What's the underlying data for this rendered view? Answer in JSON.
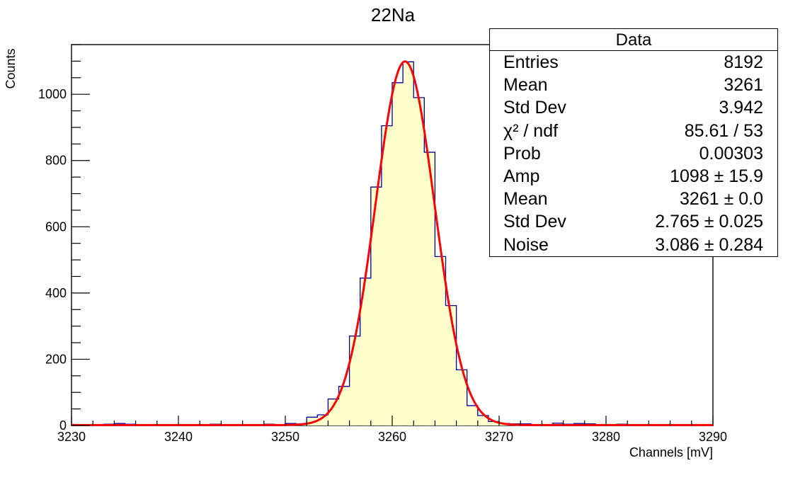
{
  "chart_data": {
    "type": "bar",
    "title": "22Na",
    "xlabel": "Channels [mV]",
    "ylabel": "Counts",
    "xlim": [
      3230,
      3290
    ],
    "ylim": [
      0,
      1150
    ],
    "x_ticks": [
      3230,
      3240,
      3250,
      3260,
      3270,
      3280,
      3290
    ],
    "y_ticks": [
      0,
      200,
      400,
      600,
      800,
      1000
    ],
    "grid": false,
    "fill_color": "#ffffcc",
    "line_color": "#000099",
    "fit_color": "#ff0000",
    "histogram": {
      "bin_width": 1,
      "bin_starts": [
        3230,
        3231,
        3232,
        3233,
        3234,
        3235,
        3236,
        3237,
        3238,
        3239,
        3240,
        3241,
        3242,
        3243,
        3244,
        3245,
        3246,
        3247,
        3248,
        3249,
        3250,
        3251,
        3252,
        3253,
        3254,
        3255,
        3256,
        3257,
        3258,
        3259,
        3260,
        3261,
        3262,
        3263,
        3264,
        3265,
        3266,
        3267,
        3268,
        3269,
        3270,
        3271,
        3272,
        3273,
        3274,
        3275,
        3276,
        3277,
        3278,
        3279,
        3280,
        3281,
        3282,
        3283,
        3284,
        3285,
        3286,
        3287,
        3288,
        3289
      ],
      "counts": [
        3,
        3,
        2,
        4,
        6,
        4,
        2,
        3,
        2,
        3,
        3,
        2,
        3,
        4,
        2,
        3,
        2,
        3,
        4,
        3,
        6,
        5,
        25,
        32,
        80,
        118,
        270,
        445,
        720,
        905,
        1035,
        1098,
        990,
        825,
        510,
        362,
        168,
        60,
        30,
        12,
        6,
        5,
        5,
        3,
        3,
        7,
        4,
        6,
        5,
        3,
        3,
        4,
        3,
        3,
        2,
        3,
        2,
        3,
        3,
        2
      ]
    },
    "fit": {
      "function": "gaussian + constant",
      "amp": 1098,
      "mean": 3261.2,
      "sigma": 2.765,
      "noise": 3.086
    }
  },
  "stats_box": {
    "title": "Data",
    "rows": [
      {
        "key": "Entries",
        "value": "8192"
      },
      {
        "key": "Mean",
        "value": "3261"
      },
      {
        "key": "Std Dev",
        "value": "3.942"
      },
      {
        "key": "χ² / ndf",
        "value": "85.61 / 53"
      },
      {
        "key": "Prob",
        "value": "0.00303"
      },
      {
        "key": "Amp",
        "value": "1098 ± 15.9"
      },
      {
        "key": "Mean",
        "value": "3261 ± 0.0"
      },
      {
        "key": "Std Dev",
        "value": "2.765 ± 0.025"
      },
      {
        "key": "Noise",
        "value": "3.086 ± 0.284"
      }
    ]
  }
}
